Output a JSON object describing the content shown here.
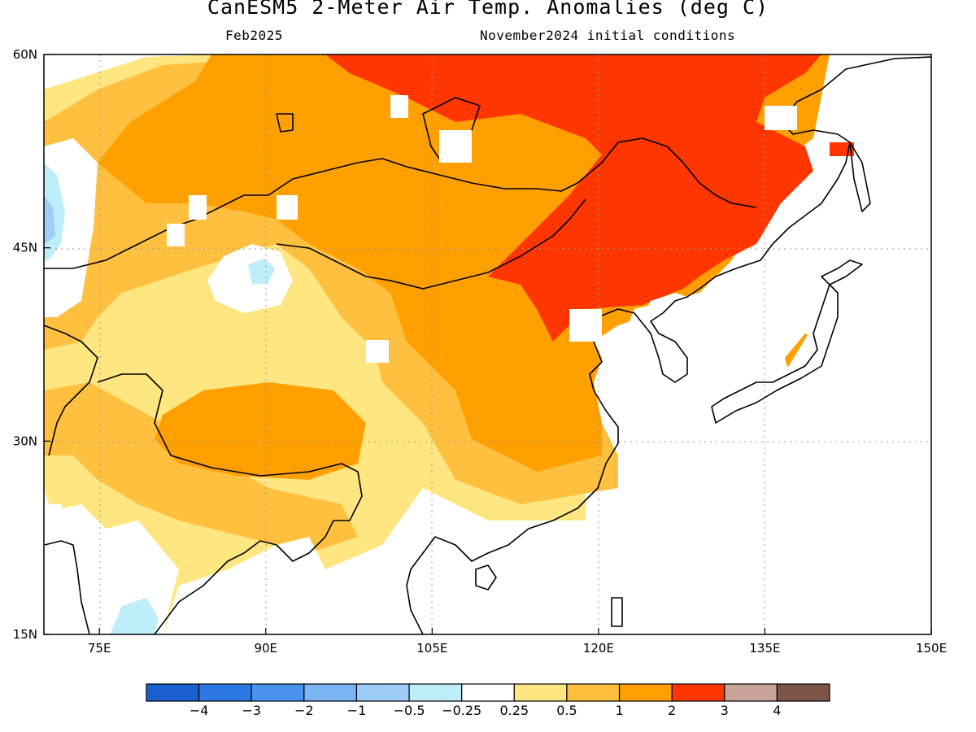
{
  "title": "CanESM5 2-Meter Air Temp. Anomalies (deg C)",
  "subtitle_left": "Feb2025",
  "subtitle_right": "November2024 initial conditions",
  "map": {
    "lon_range": [
      70,
      150
    ],
    "lat_range": [
      15,
      60
    ],
    "x_ticks": [
      {
        "lon": 75,
        "label": "75E"
      },
      {
        "lon": 90,
        "label": "90E"
      },
      {
        "lon": 105,
        "label": "105E"
      },
      {
        "lon": 120,
        "label": "120E"
      },
      {
        "lon": 135,
        "label": "135E"
      },
      {
        "lon": 150,
        "label": "150E"
      }
    ],
    "y_ticks": [
      {
        "lat": 60,
        "label": "60N"
      },
      {
        "lat": 45,
        "label": "45N"
      },
      {
        "lat": 30,
        "label": "30N"
      },
      {
        "lat": 15,
        "label": "15N"
      }
    ],
    "grid": "dotted"
  },
  "colorbar": {
    "colors": [
      "#1a5fd0",
      "#2a78e0",
      "#4a94ee",
      "#79b4f5",
      "#9fcdf8",
      "#bdeefa",
      "#ffffff",
      "#ffe680",
      "#ffc040",
      "#ffa000",
      "#ff3600",
      "#c8a49a",
      "#7d5548"
    ],
    "labels": [
      "-4",
      "-3",
      "-2",
      "-1",
      "-0.5",
      "-0.25",
      "0.25",
      "0.5",
      "1",
      "2",
      "3",
      "4"
    ]
  },
  "colors": {
    "ocean": "#ffffff",
    "coast": "#000000"
  }
}
